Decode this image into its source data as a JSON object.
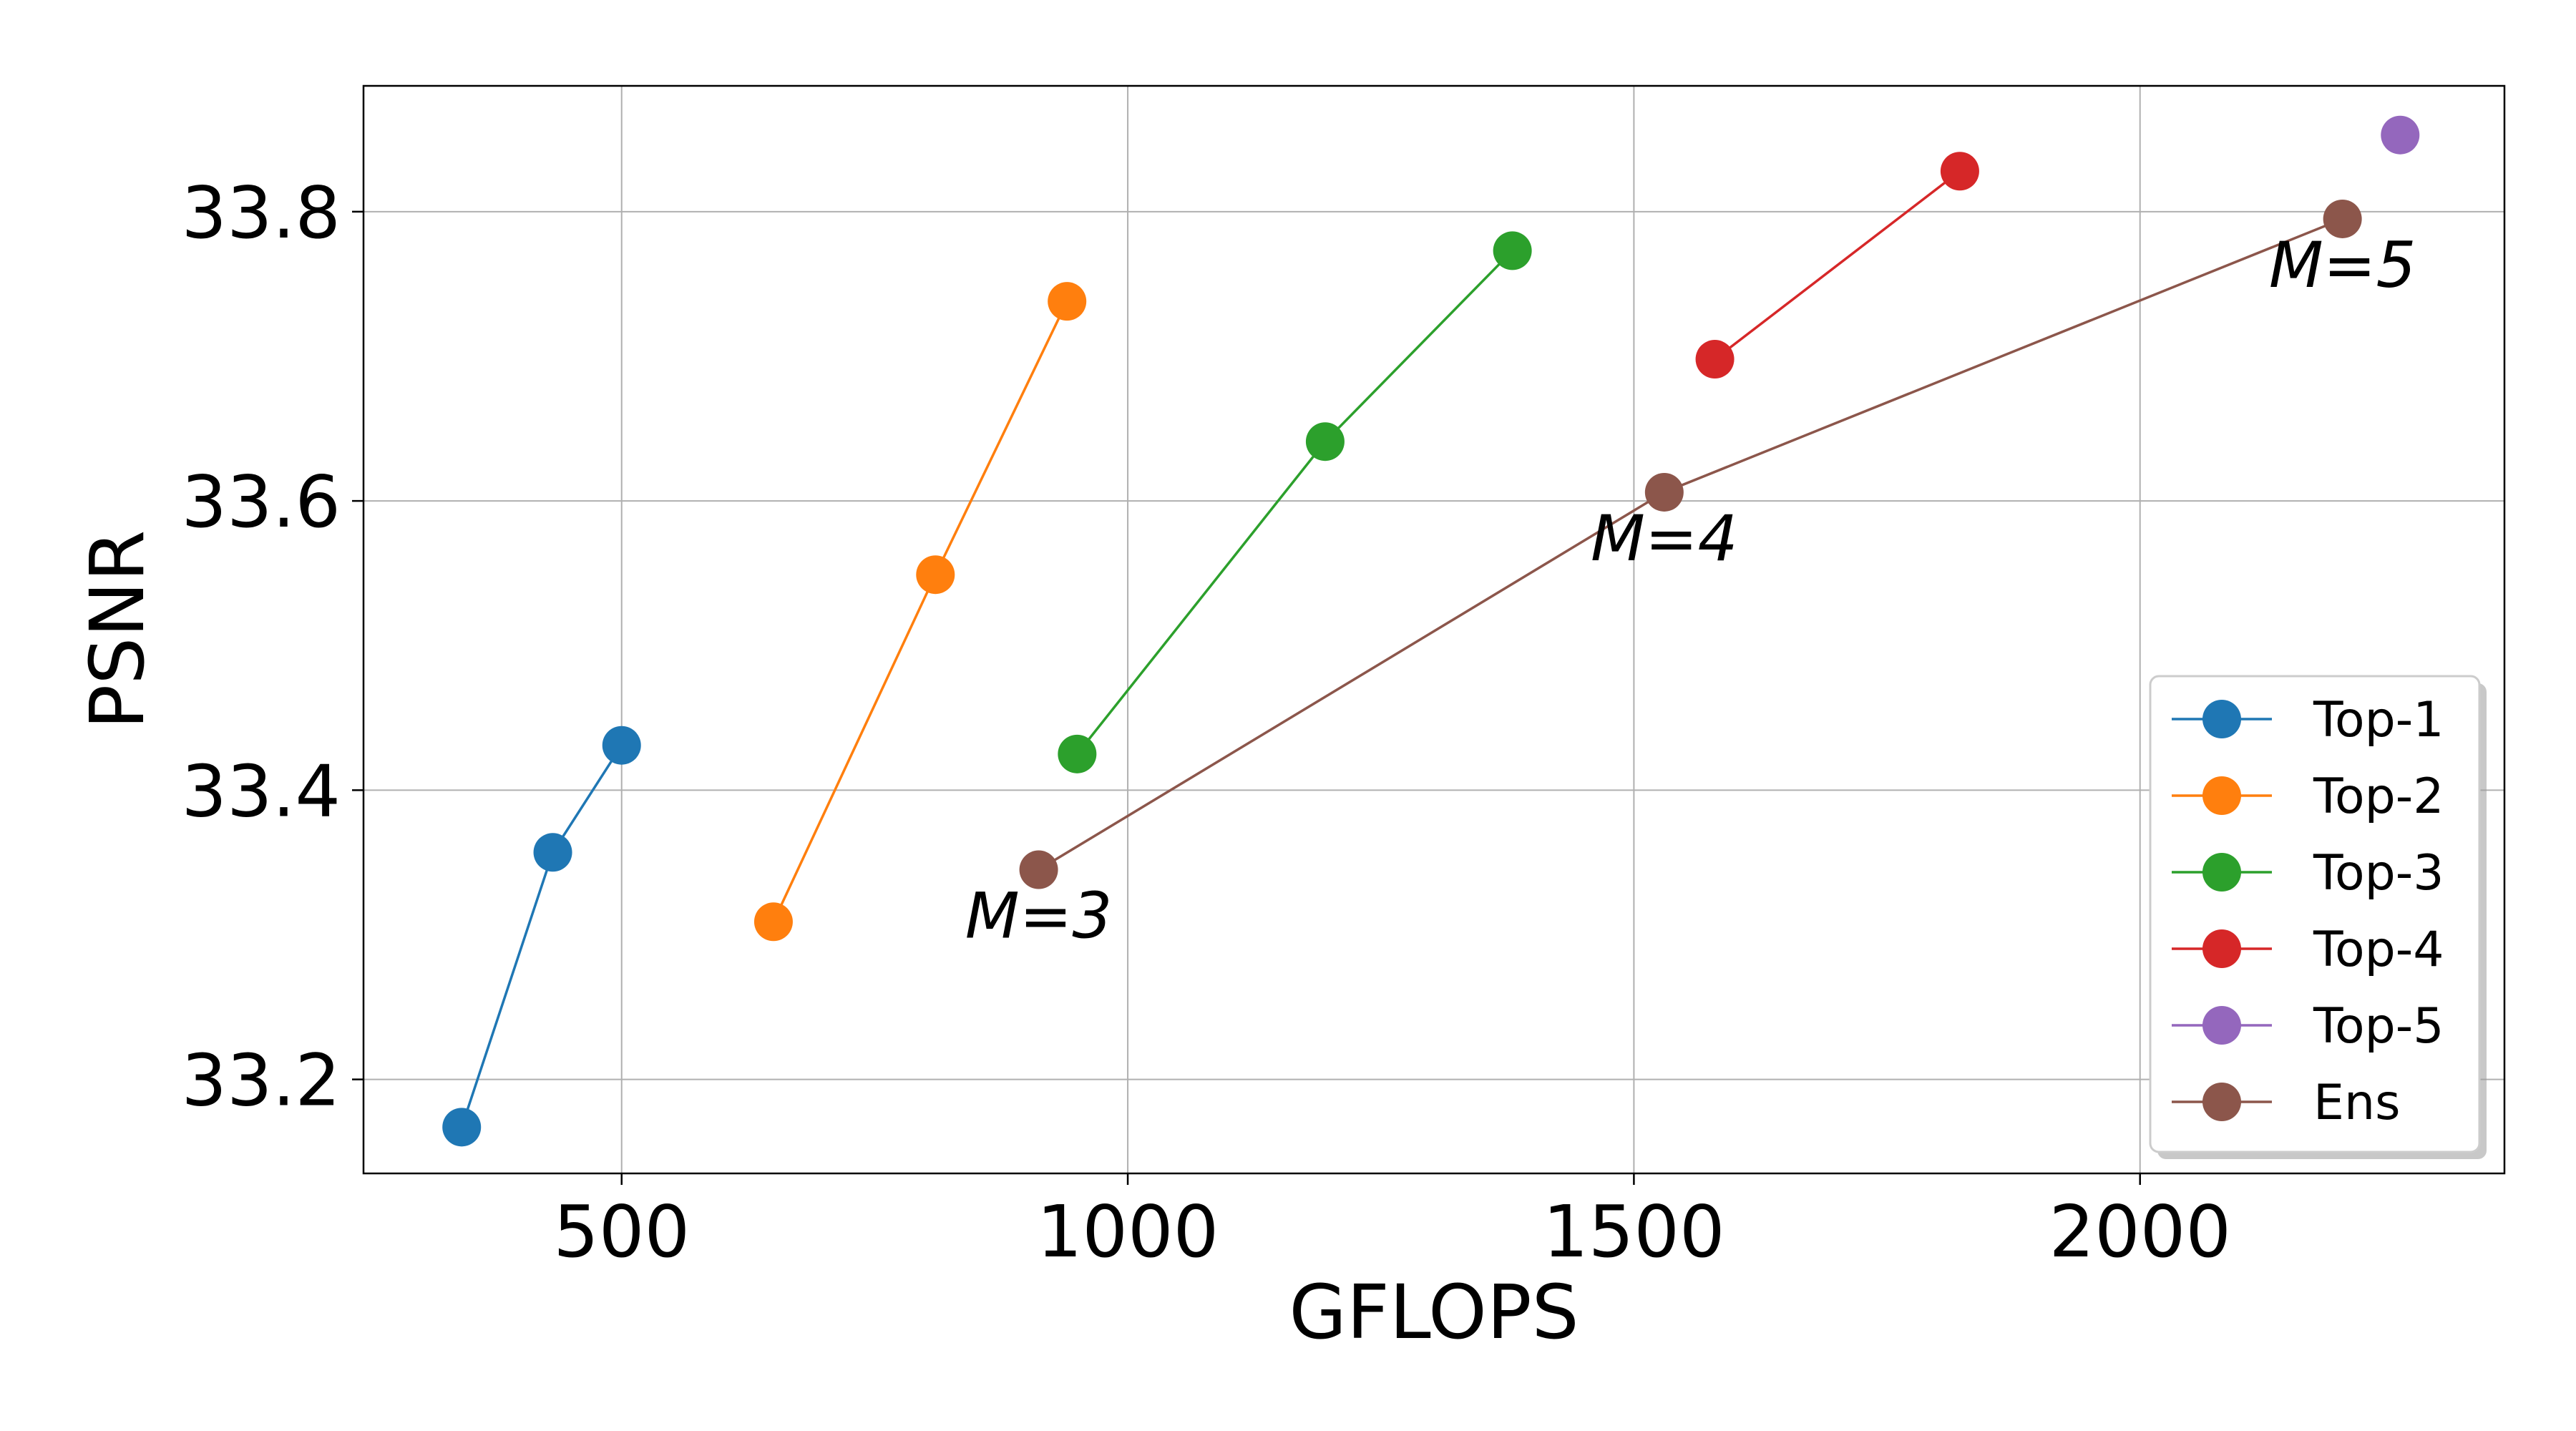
{
  "chart_data": {
    "type": "line",
    "title": "",
    "xlabel": "GFLOPS",
    "ylabel": "PSNR",
    "xlim": [
      245,
      2360
    ],
    "ylim": [
      33.135,
      33.887
    ],
    "xticks": [
      500,
      1000,
      1500,
      2000
    ],
    "yticks": [
      33.2,
      33.4,
      33.6,
      33.8
    ],
    "xtick_labels": [
      "500",
      "1000",
      "1500",
      "2000"
    ],
    "ytick_labels": [
      "33.2",
      "33.4",
      "33.6",
      "33.8"
    ],
    "grid": true,
    "legend_position": "lower-right",
    "series": [
      {
        "name": "Top-1",
        "color": "#1f77b4",
        "x": [
          342,
          432,
          500
        ],
        "y": [
          33.167,
          33.357,
          33.431
        ]
      },
      {
        "name": "Top-2",
        "color": "#ff7f0e",
        "x": [
          650,
          810,
          940
        ],
        "y": [
          33.309,
          33.549,
          33.738
        ]
      },
      {
        "name": "Top-3",
        "color": "#2ca02c",
        "x": [
          950,
          1195,
          1380
        ],
        "y": [
          33.425,
          33.641,
          33.773
        ]
      },
      {
        "name": "Top-4",
        "color": "#d62728",
        "x": [
          1580,
          1822
        ],
        "y": [
          33.698,
          33.828
        ]
      },
      {
        "name": "Top-5",
        "color": "#9467bd",
        "x": [
          2257
        ],
        "y": [
          33.853
        ]
      },
      {
        "name": "Ens",
        "color": "#8c564b",
        "x": [
          912,
          1530,
          2200
        ],
        "y": [
          33.345,
          33.606,
          33.795
        ]
      }
    ],
    "annotations": [
      {
        "text": "M=3",
        "x": 912,
        "y": 33.345
      },
      {
        "text": "M=4",
        "x": 1530,
        "y": 33.606
      },
      {
        "text": "M=5",
        "x": 2200,
        "y": 33.795
      }
    ]
  }
}
